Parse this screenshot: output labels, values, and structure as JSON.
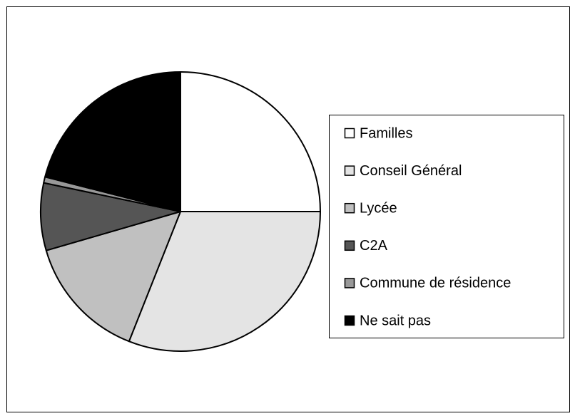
{
  "chart_data": {
    "type": "pie",
    "categories": [
      "Familles",
      "Conseil Général",
      "Lycée",
      "C2A",
      "Commune de résidence",
      "Ne sait pas"
    ],
    "values": [
      25,
      31,
      14.5,
      7.8,
      0.7,
      21
    ],
    "colors": [
      "#ffffff",
      "#e4e4e4",
      "#c0c0c0",
      "#555555",
      "#999999",
      "#000000"
    ],
    "legend": "right"
  }
}
